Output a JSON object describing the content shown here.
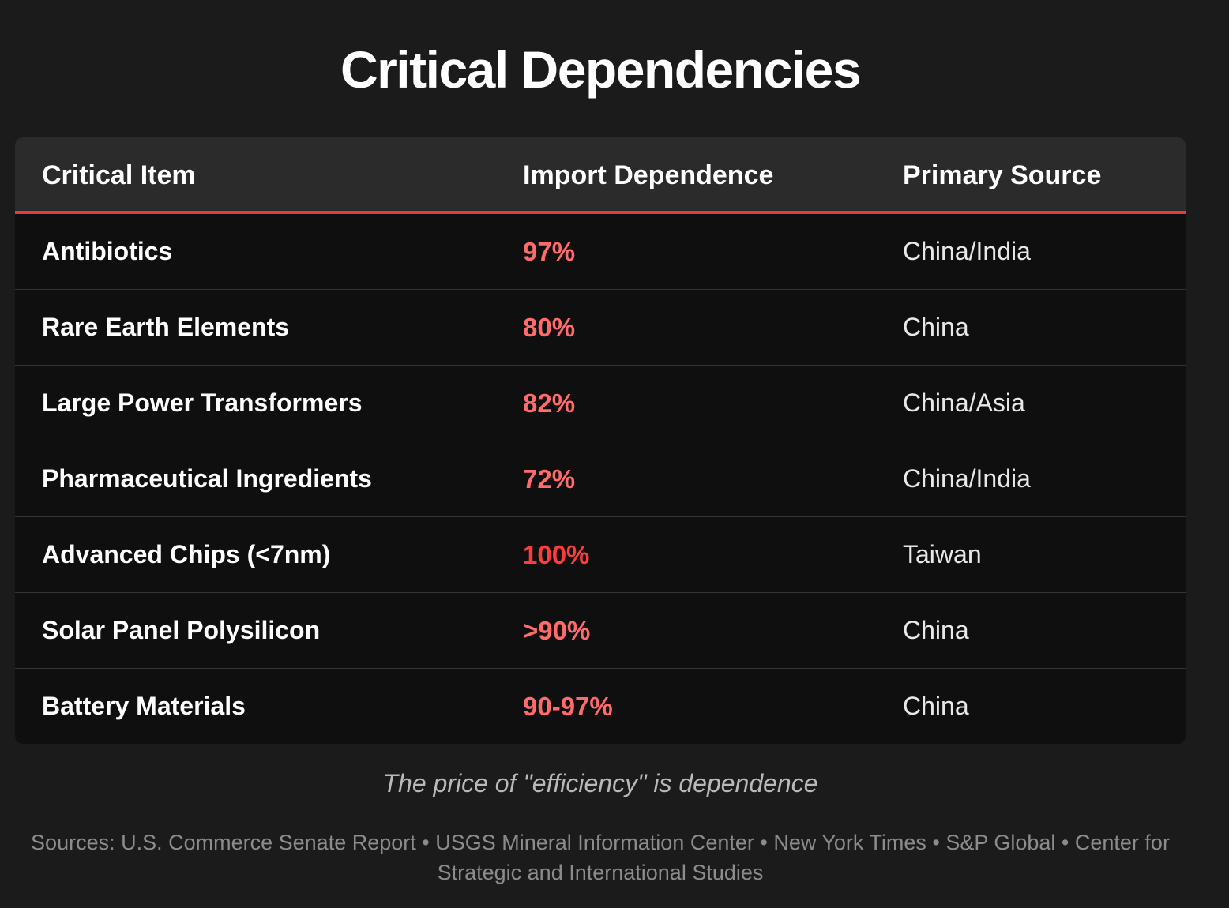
{
  "title": "Critical Dependencies",
  "table": {
    "headers": [
      "Critical Item",
      "Import Dependence",
      "Primary Source"
    ],
    "rows": [
      {
        "item": "Antibiotics",
        "dependence": "97%",
        "source": "China/India"
      },
      {
        "item": "Rare Earth Elements",
        "dependence": "80%",
        "source": "China"
      },
      {
        "item": "Large Power Transformers",
        "dependence": "82%",
        "source": "China/Asia"
      },
      {
        "item": "Pharmaceutical Ingredients",
        "dependence": "72%",
        "source": "China/India"
      },
      {
        "item": "Advanced Chips (<7nm)",
        "dependence": "100%",
        "source": "Taiwan"
      },
      {
        "item": "Solar Panel Polysilicon",
        "dependence": ">90%",
        "source": "China"
      },
      {
        "item": "Battery Materials",
        "dependence": "90-97%",
        "source": "China"
      }
    ]
  },
  "tagline": "The price of \"efficiency\" is dependence",
  "sources": "Sources: U.S. Commerce Senate Report • USGS Mineral Information Center • New York Times • S&P Global • Center for Strategic and International Studies",
  "colors": {
    "background": "#1b1b1b",
    "accent": "#e53d3d",
    "percent": "#ff6b6b",
    "percent_critical": "#ff3b3b"
  }
}
